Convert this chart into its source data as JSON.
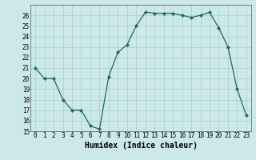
{
  "x": [
    0,
    1,
    2,
    3,
    4,
    5,
    6,
    7,
    8,
    9,
    10,
    11,
    12,
    13,
    14,
    15,
    16,
    17,
    18,
    19,
    20,
    21,
    22,
    23
  ],
  "y": [
    21,
    20,
    20,
    18,
    17,
    17,
    15.5,
    15.2,
    20.2,
    22.5,
    23.2,
    25,
    26.3,
    26.2,
    26.2,
    26.2,
    26.0,
    25.8,
    26.0,
    26.3,
    24.8,
    23,
    19,
    16.5
  ],
  "line_color": "#1a6b5a",
  "marker": "D",
  "marker_size": 2.0,
  "bg_color": "#cce8e8",
  "grid_color": "#aacccc",
  "xlabel": "Humidex (Indice chaleur)",
  "ylim": [
    15,
    27
  ],
  "xlim": [
    -0.5,
    23.5
  ],
  "yticks": [
    15,
    16,
    17,
    18,
    19,
    20,
    21,
    22,
    23,
    24,
    25,
    26
  ],
  "xticks": [
    0,
    1,
    2,
    3,
    4,
    5,
    6,
    7,
    8,
    9,
    10,
    11,
    12,
    13,
    14,
    15,
    16,
    17,
    18,
    19,
    20,
    21,
    22,
    23
  ],
  "xlabel_fontsize": 7,
  "tick_fontsize": 5.5,
  "linewidth": 0.9
}
